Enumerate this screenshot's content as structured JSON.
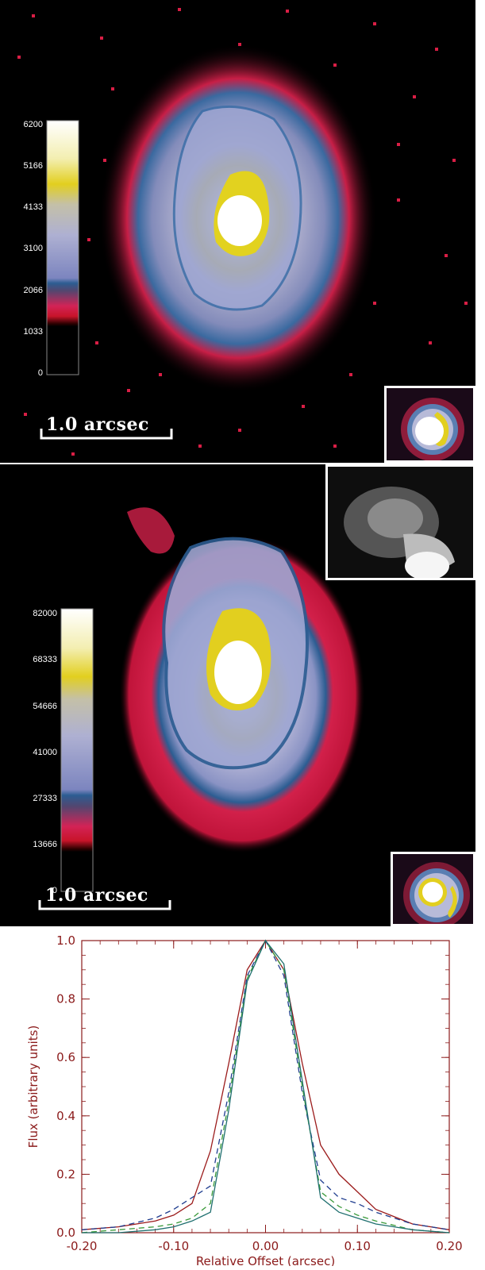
{
  "panels": [
    {
      "colorbar": {
        "ticks": [
          "6200",
          "5166",
          "4133",
          "3100",
          "2066",
          "1033",
          "0"
        ]
      },
      "scalebar": "1.0 arcsec"
    },
    {
      "colorbar": {
        "ticks": [
          "82000",
          "68333",
          "54666",
          "41000",
          "27333",
          "13666",
          "0"
        ]
      },
      "scalebar": "1.0 arcsec"
    }
  ],
  "chart_data": {
    "type": "line",
    "title": "",
    "xlabel": "Relative Offset (arcsec)",
    "ylabel": "Flux (arbitrary units)",
    "xlim": [
      -0.2,
      0.2
    ],
    "ylim": [
      0.0,
      1.0
    ],
    "xticks": [
      "-0.20",
      "-0.10",
      "0.00",
      "0.10",
      "0.20"
    ],
    "yticks": [
      "0.0",
      "0.2",
      "0.4",
      "0.6",
      "0.8",
      "1.0"
    ],
    "grid": false,
    "colors": {
      "axis": "#8b1a1a",
      "red": "#9b1b1b",
      "blue_dashed": "#1f3d8f",
      "green_dashed": "#3a9a3a",
      "teal": "#1f6f6f"
    },
    "series": [
      {
        "style": "solid",
        "color": "#9b1b1b",
        "x": [
          -0.2,
          -0.16,
          -0.12,
          -0.1,
          -0.08,
          -0.06,
          -0.04,
          -0.02,
          0.0,
          0.02,
          0.04,
          0.06,
          0.08,
          0.1,
          0.12,
          0.16,
          0.2
        ],
        "y": [
          0.01,
          0.02,
          0.04,
          0.06,
          0.1,
          0.28,
          0.58,
          0.9,
          1.0,
          0.9,
          0.58,
          0.3,
          0.2,
          0.14,
          0.08,
          0.03,
          0.01
        ]
      },
      {
        "style": "dashed",
        "color": "#1f3d8f",
        "x": [
          -0.2,
          -0.16,
          -0.12,
          -0.1,
          -0.08,
          -0.06,
          -0.04,
          -0.02,
          0.0,
          0.02,
          0.04,
          0.06,
          0.08,
          0.1,
          0.12,
          0.16,
          0.2
        ],
        "y": [
          0.01,
          0.02,
          0.05,
          0.08,
          0.12,
          0.16,
          0.48,
          0.88,
          1.0,
          0.88,
          0.48,
          0.18,
          0.12,
          0.1,
          0.07,
          0.03,
          0.01
        ]
      },
      {
        "style": "dashed",
        "color": "#3a9a3a",
        "x": [
          -0.2,
          -0.16,
          -0.12,
          -0.1,
          -0.08,
          -0.06,
          -0.04,
          -0.02,
          0.0,
          0.02,
          0.04,
          0.06,
          0.08,
          0.1,
          0.12,
          0.16,
          0.2
        ],
        "y": [
          0.0,
          0.01,
          0.02,
          0.03,
          0.05,
          0.1,
          0.45,
          0.87,
          1.0,
          0.9,
          0.5,
          0.14,
          0.09,
          0.06,
          0.04,
          0.01,
          0.0
        ]
      },
      {
        "style": "solid",
        "color": "#1f6f6f",
        "x": [
          -0.2,
          -0.16,
          -0.12,
          -0.1,
          -0.08,
          -0.06,
          -0.04,
          -0.02,
          0.0,
          0.02,
          0.04,
          0.06,
          0.08,
          0.1,
          0.12,
          0.16,
          0.2
        ],
        "y": [
          0.0,
          0.0,
          0.01,
          0.02,
          0.04,
          0.07,
          0.42,
          0.86,
          1.0,
          0.92,
          0.52,
          0.12,
          0.07,
          0.05,
          0.03,
          0.01,
          0.0
        ]
      }
    ]
  }
}
